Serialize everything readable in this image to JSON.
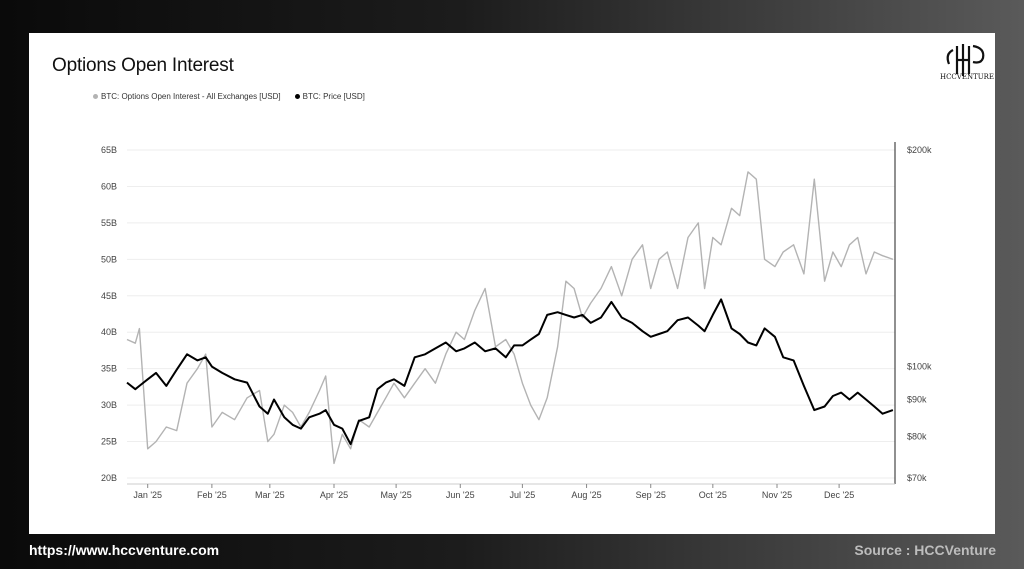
{
  "footer": {
    "url": "https://www.hccventure.com",
    "source": "Source : HCCVenture"
  },
  "logo": {
    "text": "HCCVENTURE"
  },
  "colors": {
    "open_interest": "#b3b3b3",
    "price": "#000000",
    "grid": "#eeeeee"
  },
  "chart_data": {
    "type": "line",
    "title": "Options Open Interest",
    "grid": true,
    "legend_position": "top-left",
    "y_left": {
      "ticks": [
        "65B",
        "60B",
        "55B",
        "50B",
        "45B",
        "40B",
        "35B",
        "30B",
        "25B",
        "20B"
      ],
      "range": [
        20,
        65
      ],
      "unit": "B USD"
    },
    "y_right": {
      "ticks": [
        "$200k",
        "$100k",
        "$90k",
        "$80k",
        "$70k"
      ],
      "tick_values": [
        200,
        100,
        90,
        80,
        70
      ],
      "scale": "log",
      "range": [
        70,
        200
      ],
      "unit": "k USD"
    },
    "x_ticks": [
      "Jan '25",
      "Feb '25",
      "Mar '25",
      "Apr '25",
      "May '25",
      "Jun '25",
      "Jul '25",
      "Aug '25",
      "Sep '25",
      "Oct '25",
      "Nov '25",
      "Dec '25"
    ],
    "series": [
      {
        "name": "BTC: Options Open Interest - All Exchanges [USD]",
        "axis": "left",
        "x": [
          "2024-12-22",
          "2024-12-26",
          "2024-12-28",
          "2025-01-01",
          "2025-01-05",
          "2025-01-10",
          "2025-01-15",
          "2025-01-20",
          "2025-01-25",
          "2025-01-29",
          "2025-02-01",
          "2025-02-06",
          "2025-02-12",
          "2025-02-18",
          "2025-02-24",
          "2025-02-28",
          "2025-03-03",
          "2025-03-08",
          "2025-03-12",
          "2025-03-16",
          "2025-03-20",
          "2025-03-25",
          "2025-03-28",
          "2025-04-01",
          "2025-04-05",
          "2025-04-09",
          "2025-04-13",
          "2025-04-18",
          "2025-04-22",
          "2025-04-26",
          "2025-04-30",
          "2025-05-05",
          "2025-05-10",
          "2025-05-15",
          "2025-05-20",
          "2025-05-25",
          "2025-05-30",
          "2025-06-03",
          "2025-06-08",
          "2025-06-13",
          "2025-06-18",
          "2025-06-23",
          "2025-06-27",
          "2025-07-01",
          "2025-07-05",
          "2025-07-09",
          "2025-07-13",
          "2025-07-18",
          "2025-07-22",
          "2025-07-26",
          "2025-07-30",
          "2025-08-03",
          "2025-08-08",
          "2025-08-13",
          "2025-08-18",
          "2025-08-23",
          "2025-08-28",
          "2025-09-01",
          "2025-09-05",
          "2025-09-09",
          "2025-09-14",
          "2025-09-19",
          "2025-09-24",
          "2025-09-27",
          "2025-10-01",
          "2025-10-05",
          "2025-10-10",
          "2025-10-14",
          "2025-10-18",
          "2025-10-22",
          "2025-10-26",
          "2025-10-31",
          "2025-11-04",
          "2025-11-09",
          "2025-11-14",
          "2025-11-19",
          "2025-11-24",
          "2025-11-28",
          "2025-12-02",
          "2025-12-06",
          "2025-12-10",
          "2025-12-14",
          "2025-12-18",
          "2025-12-22",
          "2025-12-27"
        ],
        "values": [
          39,
          38.5,
          40.5,
          24,
          25,
          27,
          26.5,
          33,
          35,
          37,
          27,
          29,
          28,
          31,
          32,
          25,
          26,
          30,
          29,
          27,
          29,
          32,
          34,
          22,
          26,
          24,
          28,
          27,
          29,
          31,
          33,
          31,
          33,
          35,
          33,
          37,
          40,
          39,
          43,
          46,
          38,
          39,
          37,
          33,
          30,
          28,
          31,
          38,
          47,
          46,
          42,
          44,
          46,
          49,
          45,
          50,
          52,
          46,
          50,
          51,
          46,
          53,
          55,
          46,
          53,
          52,
          57,
          56,
          62,
          61,
          50,
          49,
          51,
          52,
          48,
          61,
          47,
          51,
          49,
          52,
          53,
          48,
          51,
          50.5,
          50
        ]
      },
      {
        "name": "BTC: Price [USD]",
        "axis": "right",
        "x": [
          "2024-12-22",
          "2024-12-26",
          "2024-12-28",
          "2025-01-01",
          "2025-01-05",
          "2025-01-10",
          "2025-01-15",
          "2025-01-20",
          "2025-01-25",
          "2025-01-29",
          "2025-02-01",
          "2025-02-06",
          "2025-02-12",
          "2025-02-18",
          "2025-02-24",
          "2025-02-28",
          "2025-03-03",
          "2025-03-08",
          "2025-03-12",
          "2025-03-16",
          "2025-03-20",
          "2025-03-25",
          "2025-03-28",
          "2025-04-01",
          "2025-04-05",
          "2025-04-09",
          "2025-04-13",
          "2025-04-18",
          "2025-04-22",
          "2025-04-26",
          "2025-04-30",
          "2025-05-05",
          "2025-05-10",
          "2025-05-15",
          "2025-05-20",
          "2025-05-25",
          "2025-05-30",
          "2025-06-03",
          "2025-06-08",
          "2025-06-13",
          "2025-06-18",
          "2025-06-23",
          "2025-06-27",
          "2025-07-01",
          "2025-07-05",
          "2025-07-09",
          "2025-07-13",
          "2025-07-18",
          "2025-07-22",
          "2025-07-26",
          "2025-07-30",
          "2025-08-03",
          "2025-08-08",
          "2025-08-13",
          "2025-08-18",
          "2025-08-23",
          "2025-08-28",
          "2025-09-01",
          "2025-09-05",
          "2025-09-09",
          "2025-09-14",
          "2025-09-19",
          "2025-09-24",
          "2025-09-27",
          "2025-10-01",
          "2025-10-05",
          "2025-10-10",
          "2025-10-14",
          "2025-10-18",
          "2025-10-22",
          "2025-10-26",
          "2025-10-31",
          "2025-11-04",
          "2025-11-09",
          "2025-11-14",
          "2025-11-19",
          "2025-11-24",
          "2025-11-28",
          "2025-12-02",
          "2025-12-06",
          "2025-12-10",
          "2025-12-14",
          "2025-12-18",
          "2025-12-22",
          "2025-12-27"
        ],
        "values": [
          95,
          93,
          94,
          96,
          98,
          94,
          99,
          104,
          102,
          103,
          100,
          98,
          96,
          95,
          88,
          86,
          90,
          85,
          83,
          82,
          85,
          86,
          87,
          83,
          82,
          78,
          84,
          85,
          93,
          95,
          96,
          94,
          103,
          104,
          106,
          108,
          105,
          106,
          108,
          105,
          106,
          103,
          107,
          107,
          109,
          111,
          118,
          119,
          118,
          117,
          118,
          115,
          117,
          123,
          117,
          115,
          112,
          110,
          111,
          112,
          116,
          117,
          114,
          112,
          118,
          124,
          113,
          111,
          108,
          107,
          113,
          110,
          103,
          102,
          94,
          87,
          88,
          91,
          92,
          90,
          92,
          90,
          88,
          86,
          87
        ]
      }
    ]
  }
}
